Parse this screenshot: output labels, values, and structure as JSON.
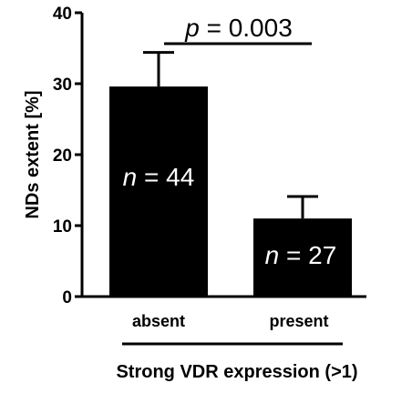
{
  "chart_data": {
    "type": "bar",
    "categories": [
      "absent",
      "present"
    ],
    "values": [
      29.6,
      11.0
    ],
    "error_upper": [
      34.4,
      14.1
    ],
    "ylim": [
      0,
      40
    ],
    "yticks": [
      "0",
      "10",
      "20",
      "30",
      "40"
    ],
    "ylabel": "NDs extent [%]",
    "xlabel": "Strong VDR expression (>1)",
    "bar_labels": [
      {
        "n_symbol": "n",
        "text": " = 44"
      },
      {
        "n_symbol": "n",
        "text": " = 27"
      }
    ],
    "annotation": {
      "p_symbol": "p",
      "text": " = 0.003"
    },
    "bar_color": "#000000"
  }
}
